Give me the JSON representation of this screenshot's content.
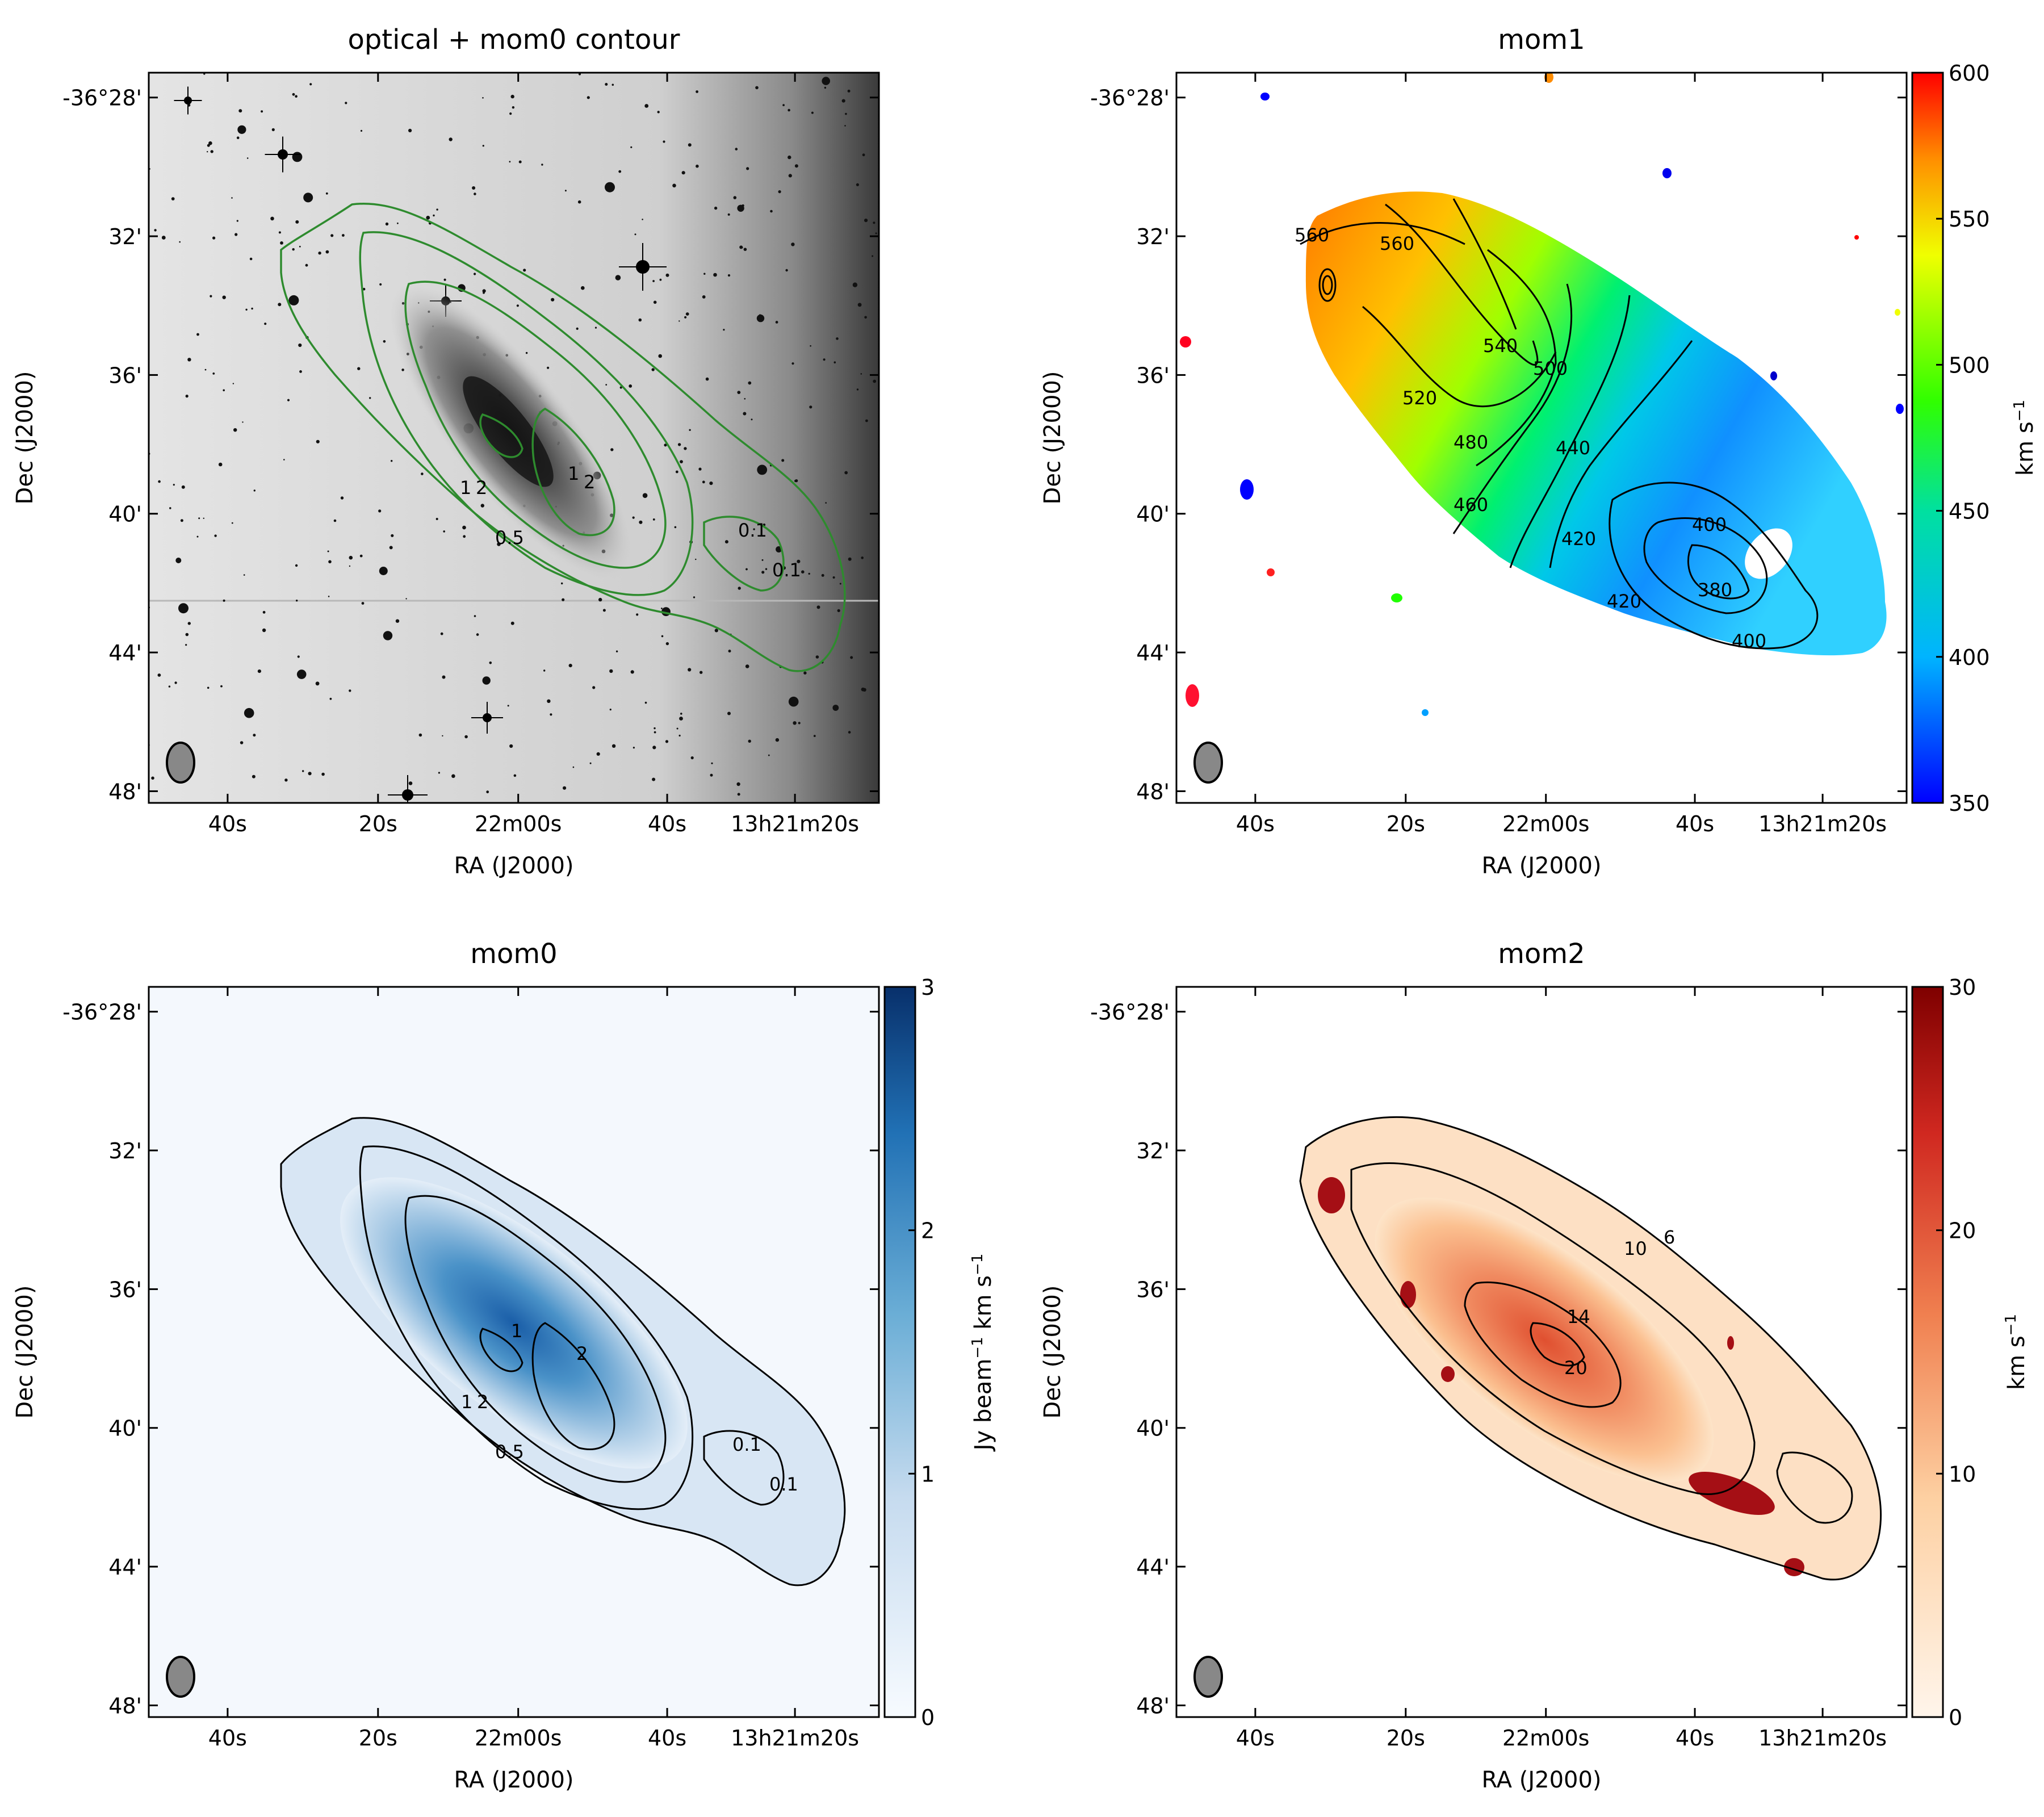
{
  "figure": {
    "ra_label": "RA (J2000)",
    "dec_label": "Dec (J2000)",
    "ra_ticks": [
      "40s",
      "20s",
      "22m00s",
      "40s",
      "13h21m20s"
    ],
    "dec_ticks": [
      "-36°28'",
      "32'",
      "36'",
      "40'",
      "44'",
      "48'"
    ]
  },
  "chart_data": [
    {
      "id": "optical",
      "type": "heatmap",
      "title": "optical + mom0 contour",
      "xlabel": "RA (J2000)",
      "ylabel": "Dec (J2000)",
      "contour_color": "#2e8b2e",
      "contour_levels": [
        0.1,
        0.5,
        1,
        2
      ],
      "contour_labels": [
        "0.5",
        "1",
        "2",
        "1",
        "2",
        "0.1",
        "0.1"
      ]
    },
    {
      "id": "mom1",
      "type": "heatmap",
      "title": "mom1",
      "xlabel": "RA (J2000)",
      "ylabel": "Dec (J2000)",
      "colorbar_label": "km s",
      "colorbar_ticks": [
        350,
        400,
        450,
        500,
        550,
        600
      ],
      "colorbar_range": [
        350,
        600
      ],
      "contour_labels": [
        "560",
        "560",
        "540",
        "520",
        "500",
        "480",
        "460",
        "440",
        "420",
        "420",
        "400",
        "400",
        "380"
      ]
    },
    {
      "id": "mom0",
      "type": "heatmap",
      "title": "mom0",
      "xlabel": "RA (J2000)",
      "ylabel": "Dec (J2000)",
      "colorbar_label": "Jy beam",
      "colorbar_label_tail": " km s",
      "colorbar_ticks": [
        0,
        1,
        2,
        3
      ],
      "colorbar_range": [
        0,
        3
      ],
      "contour_labels": [
        "1",
        "2",
        "1",
        "2",
        "0.5",
        "0.1",
        "0.1"
      ]
    },
    {
      "id": "mom2",
      "type": "heatmap",
      "title": "mom2",
      "xlabel": "RA (J2000)",
      "ylabel": "Dec (J2000)",
      "colorbar_label": "km s",
      "colorbar_ticks": [
        0,
        10,
        20,
        30
      ],
      "colorbar_range": [
        0,
        30
      ],
      "contour_labels": [
        "10",
        "6",
        "14",
        "20"
      ]
    }
  ]
}
